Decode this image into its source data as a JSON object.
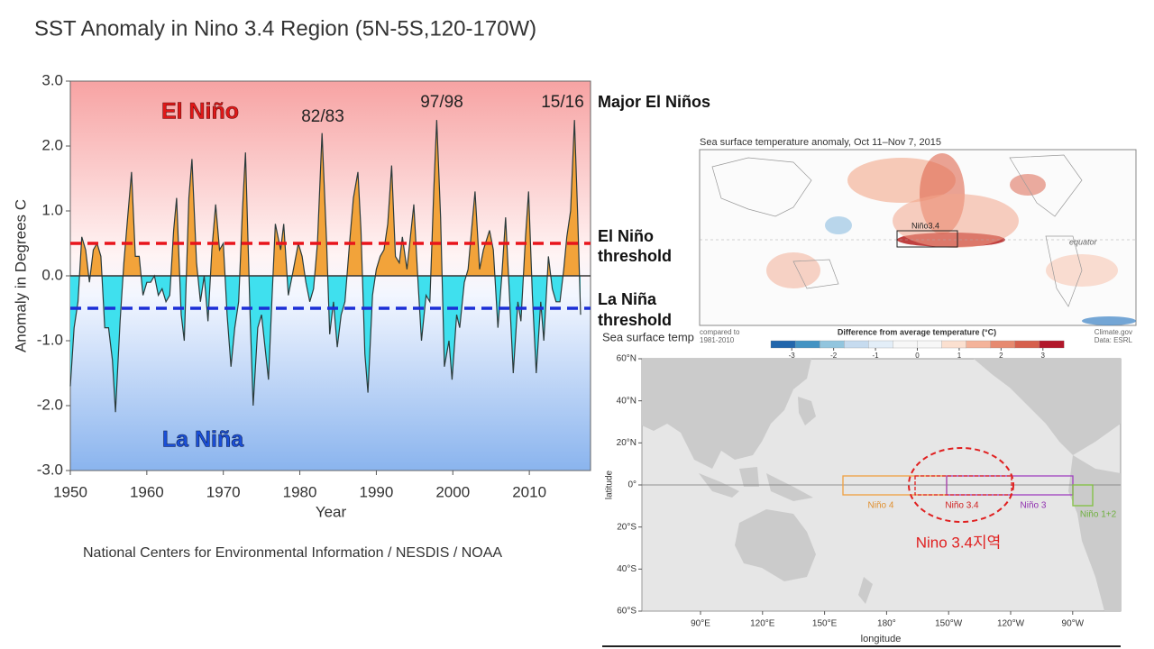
{
  "chart_data": {
    "type": "area",
    "title": "SST Anomaly in Nino 3.4 Region (5N-5S,120-170W)",
    "xlabel": "Year",
    "ylabel": "Anomaly in Degrees C",
    "source": "National Centers for Environmental Information / NESDIS / NOAA",
    "x": [
      1950.0,
      1950.5,
      1951.0,
      1951.5,
      1952.0,
      1952.5,
      1953.0,
      1953.5,
      1954.0,
      1954.5,
      1955.0,
      1955.5,
      1955.9,
      1956.5,
      1957.0,
      1957.5,
      1958.0,
      1958.5,
      1959.0,
      1959.5,
      1960.0,
      1960.5,
      1961.0,
      1961.5,
      1962.0,
      1962.5,
      1963.0,
      1963.5,
      1963.9,
      1964.5,
      1964.9,
      1965.5,
      1965.9,
      1966.5,
      1967.0,
      1967.5,
      1968.0,
      1968.5,
      1969.0,
      1969.5,
      1970.0,
      1970.5,
      1971.0,
      1971.5,
      1972.0,
      1972.5,
      1972.9,
      1973.5,
      1973.9,
      1974.5,
      1975.0,
      1975.9,
      1976.3,
      1976.8,
      1977.5,
      1977.9,
      1978.5,
      1979.0,
      1979.8,
      1980.3,
      1980.8,
      1981.3,
      1981.8,
      1982.3,
      1982.9,
      1983.5,
      1983.9,
      1984.4,
      1984.9,
      1985.4,
      1985.9,
      1986.5,
      1987.0,
      1987.6,
      1988.0,
      1988.5,
      1988.9,
      1989.5,
      1990.0,
      1990.5,
      1991.0,
      1991.5,
      1992.0,
      1992.5,
      1993.0,
      1993.4,
      1994.0,
      1994.9,
      1995.5,
      1995.9,
      1996.5,
      1997.0,
      1997.5,
      1997.9,
      1998.4,
      1998.9,
      1999.5,
      1999.9,
      2000.5,
      2000.9,
      2001.5,
      2002.0,
      2002.9,
      2003.5,
      2004.0,
      2004.8,
      2005.3,
      2005.9,
      2006.4,
      2006.9,
      2007.4,
      2007.9,
      2008.5,
      2008.9,
      2009.5,
      2009.9,
      2010.4,
      2010.9,
      2011.5,
      2011.9,
      2012.5,
      2013.0,
      2013.5,
      2014.0,
      2014.5,
      2014.9,
      2015.4,
      2015.9,
      2016.3,
      2016.7
    ],
    "values": [
      -1.7,
      -0.8,
      -0.4,
      0.6,
      0.4,
      -0.1,
      0.4,
      0.5,
      0.3,
      -0.8,
      -0.8,
      -1.3,
      -2.1,
      -0.7,
      0.2,
      0.9,
      1.6,
      0.3,
      0.3,
      -0.3,
      -0.1,
      -0.1,
      0.0,
      -0.3,
      -0.2,
      -0.4,
      -0.3,
      0.7,
      1.2,
      -0.6,
      -1.0,
      1.2,
      1.8,
      0.2,
      -0.4,
      0.0,
      -0.7,
      0.4,
      1.1,
      0.4,
      0.5,
      -0.6,
      -1.4,
      -0.8,
      -0.4,
      1.0,
      1.9,
      -0.6,
      -2.0,
      -0.8,
      -0.6,
      -1.6,
      -0.5,
      0.8,
      0.4,
      0.8,
      -0.3,
      0.0,
      0.5,
      0.3,
      -0.1,
      -0.4,
      -0.2,
      0.5,
      2.2,
      0.5,
      -0.9,
      -0.4,
      -1.1,
      -0.6,
      -0.4,
      0.5,
      1.2,
      1.6,
      0.7,
      -1.2,
      -1.8,
      -0.3,
      0.1,
      0.3,
      0.4,
      0.8,
      1.7,
      0.3,
      0.2,
      0.6,
      0.1,
      1.1,
      -0.2,
      -1.0,
      -0.3,
      -0.4,
      1.3,
      2.4,
      0.9,
      -1.4,
      -1.0,
      -1.6,
      -0.6,
      -0.8,
      -0.1,
      0.1,
      1.3,
      0.1,
      0.4,
      0.7,
      0.4,
      -0.8,
      0.0,
      0.9,
      -0.3,
      -1.5,
      -0.4,
      -0.7,
      0.6,
      1.3,
      -0.3,
      -1.5,
      -0.4,
      -1.0,
      0.3,
      -0.2,
      -0.4,
      -0.4,
      0.1,
      0.6,
      1.0,
      2.4,
      1.0,
      -0.6
    ],
    "colors": {
      "positive": "#f2a33a",
      "negative": "#3fe0ee",
      "line": "#2b3a3a"
    },
    "xlim": [
      1950,
      2018
    ],
    "ylim": [
      -3,
      3
    ],
    "xticks": [
      1950,
      1960,
      1970,
      1980,
      1990,
      2000,
      2010
    ],
    "yticks": [
      {
        "value": -3,
        "label": "-3.0"
      },
      {
        "value": -2,
        "label": "-2.0"
      },
      {
        "value": -1,
        "label": "-1.0"
      },
      {
        "value": 0,
        "label": "0.0"
      },
      {
        "value": 1,
        "label": "1.0"
      },
      {
        "value": 2,
        "label": "2.0"
      },
      {
        "value": 3,
        "label": "3.0"
      }
    ],
    "thresholds": [
      {
        "value": 0.5,
        "color": "#e8141b",
        "label": [
          "El Niño",
          "threshold"
        ]
      },
      {
        "value": -0.5,
        "color": "#1b2fd6",
        "label": [
          "La Niña",
          "threshold"
        ]
      }
    ],
    "phase_labels": [
      "El Niño",
      "La Niña"
    ],
    "event_labels": [
      "82/83",
      "97/98",
      "15/16"
    ],
    "events_title": "Major El Niños"
  },
  "sst_map": {
    "title": "Sea surface temperature anomaly, Oct 11–Nov 7, 2015",
    "box_label": "Niño3.4",
    "equator_label": "equator",
    "baseline_note": [
      "compared to",
      "1981-2010"
    ],
    "colorbar_title": "Difference from average temperature (°C)",
    "credit": [
      "Climate.gov",
      "Data: ESRL"
    ],
    "colorbar_ticks": [
      -3,
      -2,
      -1,
      0,
      1,
      2,
      3
    ]
  },
  "region_map": {
    "cut_title": "Sea surface temp",
    "lat_ticks": [
      "60°N",
      "40°N",
      "20°N",
      "0°",
      "20°S",
      "40°S",
      "60°S"
    ],
    "lon_ticks": [
      "90°E",
      "120°E",
      "150°E",
      "180°",
      "150°W",
      "120°W",
      "90°W"
    ],
    "xlabel": "longitude",
    "ylabel": "latitude",
    "regions": [
      "Niño 4",
      "Niño 3.4",
      "Niño 3",
      "Niño 1+2"
    ],
    "highlight": "Nino 3.4지역"
  }
}
